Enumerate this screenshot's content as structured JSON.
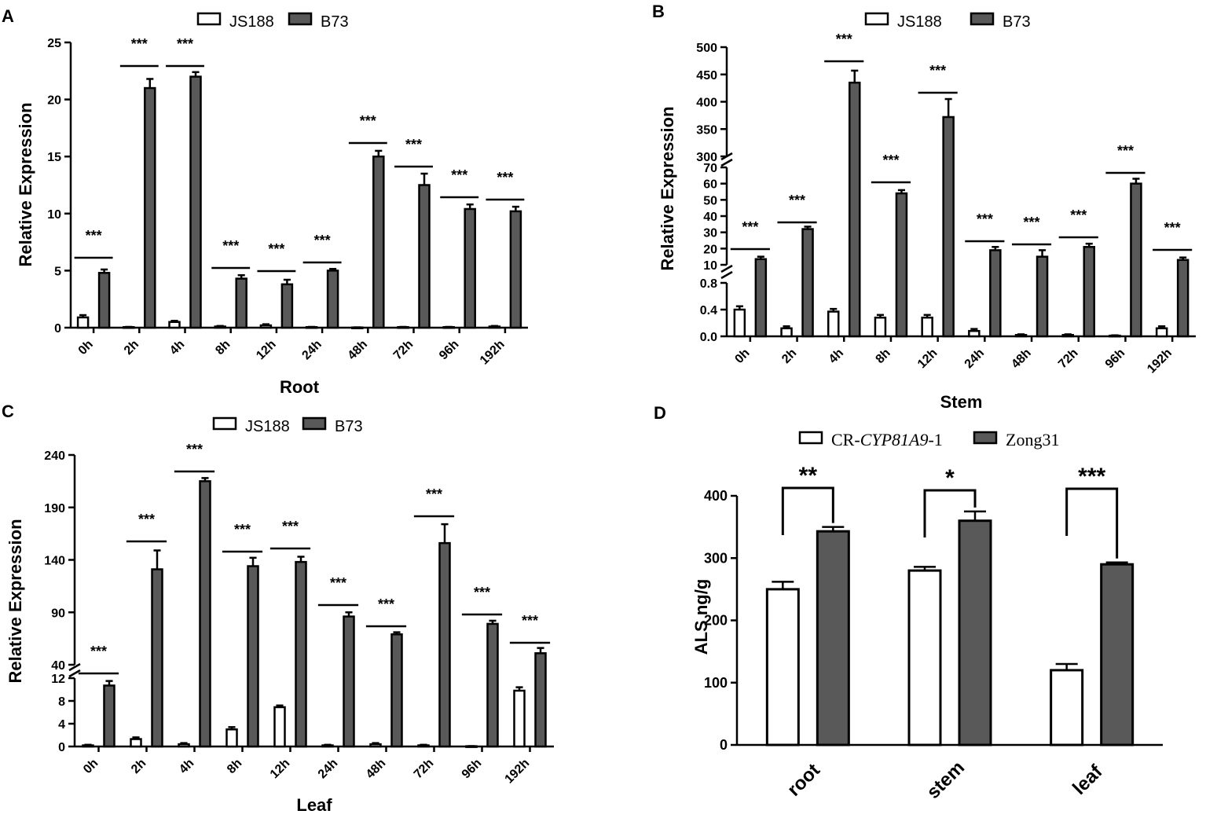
{
  "chart_data": [
    {
      "panel": "A",
      "type": "bar",
      "xlabel": "Root",
      "ylabel": "Relative Expression",
      "categories": [
        "0h",
        "2h",
        "4h",
        "8h",
        "12h",
        "24h",
        "48h",
        "72h",
        "96h",
        "192h"
      ],
      "ylim": [
        0,
        25
      ],
      "yticks": [
        "0",
        "5",
        "10",
        "15",
        "20",
        "25"
      ],
      "series": [
        {
          "name": "JS188",
          "color": "#ffffff",
          "values": [
            0.9,
            0.05,
            0.5,
            0.1,
            0.2,
            0.05,
            0.02,
            0.05,
            0.05,
            0.1
          ],
          "errors": [
            0.2,
            0.02,
            0.1,
            0.05,
            0.1,
            0.02,
            0.01,
            0.02,
            0.02,
            0.05
          ]
        },
        {
          "name": "B73",
          "color": "#595959",
          "values": [
            4.8,
            21.0,
            22.0,
            4.3,
            3.8,
            5.0,
            15.0,
            12.5,
            10.4,
            10.2
          ],
          "errors": [
            0.3,
            0.8,
            0.4,
            0.3,
            0.4,
            0.15,
            0.5,
            1.0,
            0.4,
            0.4
          ]
        }
      ],
      "significance": [
        "***",
        "***",
        "***",
        "***",
        "***",
        "***",
        "***",
        "***",
        "***",
        "***"
      ]
    },
    {
      "panel": "B",
      "type": "bar",
      "xlabel": "Stem",
      "ylabel": "Relative Expression",
      "categories": [
        "0h",
        "2h",
        "4h",
        "8h",
        "12h",
        "24h",
        "48h",
        "72h",
        "96h",
        "192h"
      ],
      "axis_segments": [
        {
          "range": [
            0,
            0.8
          ],
          "ticks": [
            "0.0",
            "0.4",
            "0.8"
          ]
        },
        {
          "range": [
            10,
            70
          ],
          "ticks": [
            "10",
            "20",
            "30",
            "40",
            "50",
            "60",
            "70"
          ]
        },
        {
          "range": [
            300,
            500
          ],
          "ticks": [
            "300",
            "350",
            "400",
            "450",
            "500"
          ]
        }
      ],
      "series": [
        {
          "name": "JS188",
          "color": "#ffffff",
          "values": [
            0.4,
            0.12,
            0.37,
            0.28,
            0.28,
            0.08,
            0.02,
            0.02,
            0.01,
            0.12
          ],
          "errors": [
            0.05,
            0.03,
            0.04,
            0.04,
            0.04,
            0.03,
            0.01,
            0.01,
            0.005,
            0.03
          ]
        },
        {
          "name": "B73",
          "color": "#595959",
          "values": [
            13.5,
            32,
            435,
            54,
            372,
            19,
            15,
            21,
            60,
            13
          ],
          "errors": [
            1.5,
            1.5,
            22,
            2,
            33,
            2,
            4,
            2,
            3,
            1.5
          ]
        }
      ],
      "significance": [
        "***",
        "***",
        "***",
        "***",
        "***",
        "***",
        "***",
        "***",
        "***",
        "***"
      ]
    },
    {
      "panel": "C",
      "type": "bar",
      "xlabel": "Leaf",
      "ylabel": "Relative Expression",
      "categories": [
        "0h",
        "2h",
        "4h",
        "8h",
        "12h",
        "24h",
        "48h",
        "72h",
        "96h",
        "192h"
      ],
      "axis_segments": [
        {
          "range": [
            0,
            12
          ],
          "ticks": [
            "0",
            "4",
            "8",
            "12"
          ]
        },
        {
          "range": [
            40,
            240
          ],
          "ticks": [
            "40",
            "90",
            "140",
            "190",
            "240"
          ]
        }
      ],
      "series": [
        {
          "name": "JS188",
          "color": "#ffffff",
          "values": [
            0.2,
            1.3,
            0.4,
            3.0,
            6.9,
            0.2,
            0.4,
            0.2,
            0.05,
            9.8
          ],
          "errors": [
            0.1,
            0.3,
            0.2,
            0.4,
            0.3,
            0.1,
            0.2,
            0.1,
            0.02,
            0.6
          ]
        },
        {
          "name": "B73",
          "color": "#595959",
          "values": [
            10.7,
            131,
            215,
            134,
            138,
            86,
            69,
            156,
            79,
            51
          ],
          "errors": [
            0.8,
            18,
            3,
            8,
            5,
            4,
            2,
            18,
            3,
            5
          ]
        }
      ],
      "significance": [
        "***",
        "***",
        "***",
        "***",
        "***",
        "***",
        "***",
        "***",
        "***",
        "***"
      ]
    },
    {
      "panel": "D",
      "type": "bar",
      "xlabel": "",
      "ylabel": "ALS ng/g",
      "categories": [
        "root",
        "stem",
        "leaf"
      ],
      "ylim": [
        0,
        400
      ],
      "yticks": [
        "0",
        "100",
        "200",
        "300",
        "400"
      ],
      "series": [
        {
          "name_parts": [
            "CR-",
            "CYP81A9",
            "-1"
          ],
          "color": "#ffffff",
          "values": [
            250,
            280,
            120
          ],
          "errors": [
            12,
            6,
            10
          ]
        },
        {
          "name": "Zong31",
          "color": "#595959",
          "values": [
            343,
            360,
            290
          ],
          "errors": [
            7,
            15,
            3
          ]
        }
      ],
      "significance": [
        "**",
        "*",
        "***"
      ]
    }
  ]
}
